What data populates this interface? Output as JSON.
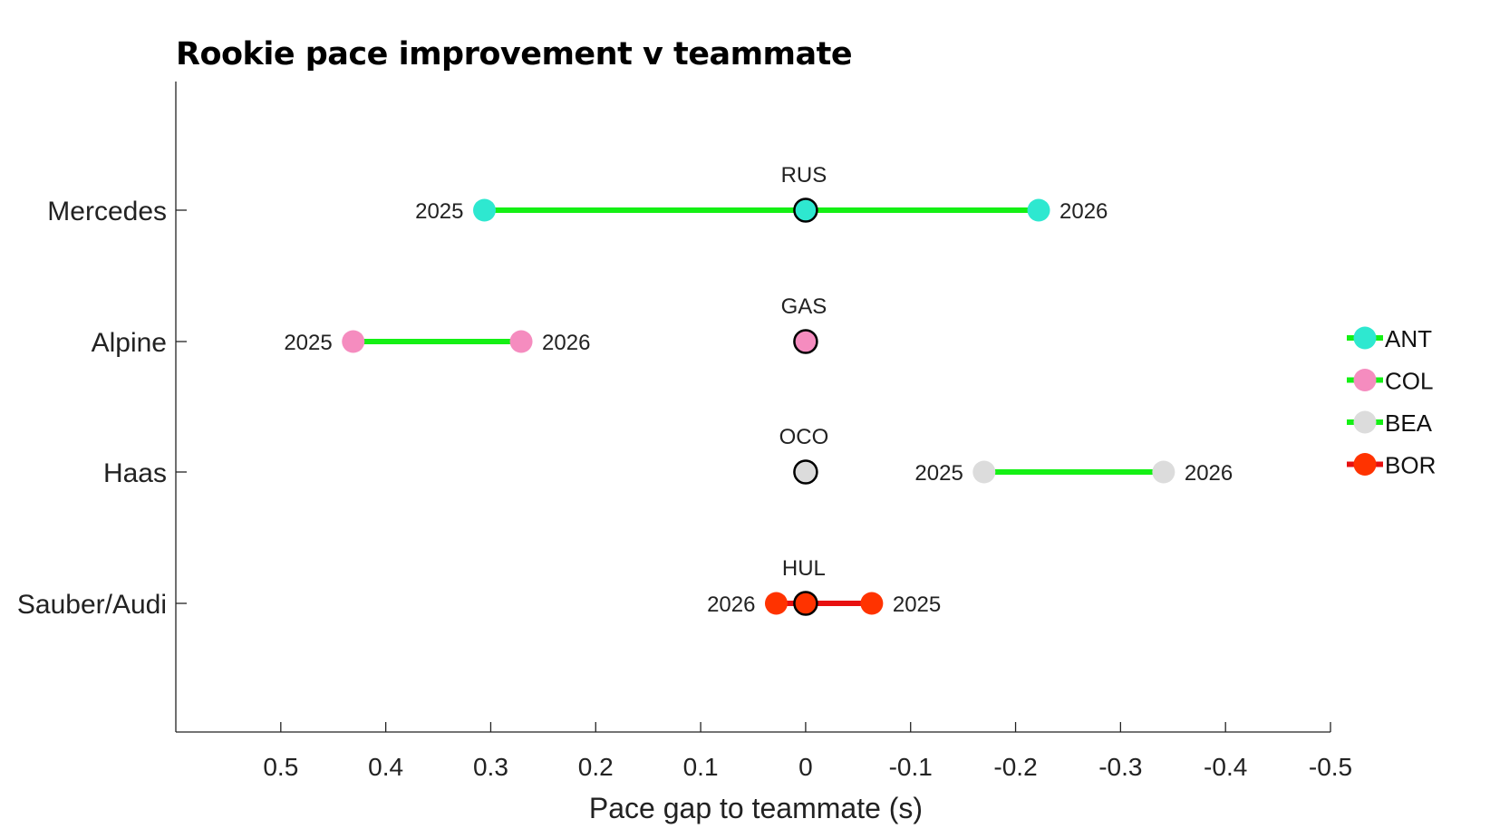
{
  "chart_data": {
    "type": "dot-range",
    "title": "Rookie pace improvement v teammate",
    "xlabel": "Pace gap to teammate (s)",
    "ylabel": "",
    "xlim": [
      0.6,
      -0.5
    ],
    "x_reversed": true,
    "xticks": [
      0.5,
      0.4,
      0.3,
      0.2,
      0.1,
      0,
      -0.1,
      -0.2,
      -0.3,
      -0.4,
      -0.5
    ],
    "xtick_labels": [
      "0.5",
      "0.4",
      "0.3",
      "0.2",
      "0.1",
      "0",
      "-0.1",
      "-0.2",
      "-0.3",
      "-0.4",
      "-0.5"
    ],
    "categories": [
      "Mercedes",
      "Alpine",
      "Haas",
      "Sauber/Audi"
    ],
    "grid": false,
    "legend_position": "right",
    "series": [
      {
        "name": "ANT",
        "team": "Mercedes",
        "teammate": "RUS",
        "color": "#2ee8d0",
        "line_color": "#14f014",
        "points": [
          {
            "year": "2025",
            "value": 0.306
          },
          {
            "year": "2026",
            "value": -0.222
          }
        ]
      },
      {
        "name": "COL",
        "team": "Alpine",
        "teammate": "GAS",
        "color": "#f58cbf",
        "line_color": "#14f014",
        "points": [
          {
            "year": "2025",
            "value": 0.431
          },
          {
            "year": "2026",
            "value": 0.271
          }
        ]
      },
      {
        "name": "BEA",
        "team": "Haas",
        "teammate": "OCO",
        "color": "#dcdcdc",
        "line_color": "#14f014",
        "points": [
          {
            "year": "2025",
            "value": -0.17
          },
          {
            "year": "2026",
            "value": -0.341
          }
        ]
      },
      {
        "name": "BOR",
        "team": "Sauber/Audi",
        "teammate": "HUL",
        "color": "#ff3300",
        "line_color": "#e81010",
        "points": [
          {
            "year": "2026",
            "value": 0.028
          },
          {
            "year": "2025",
            "value": -0.063
          }
        ]
      }
    ]
  }
}
